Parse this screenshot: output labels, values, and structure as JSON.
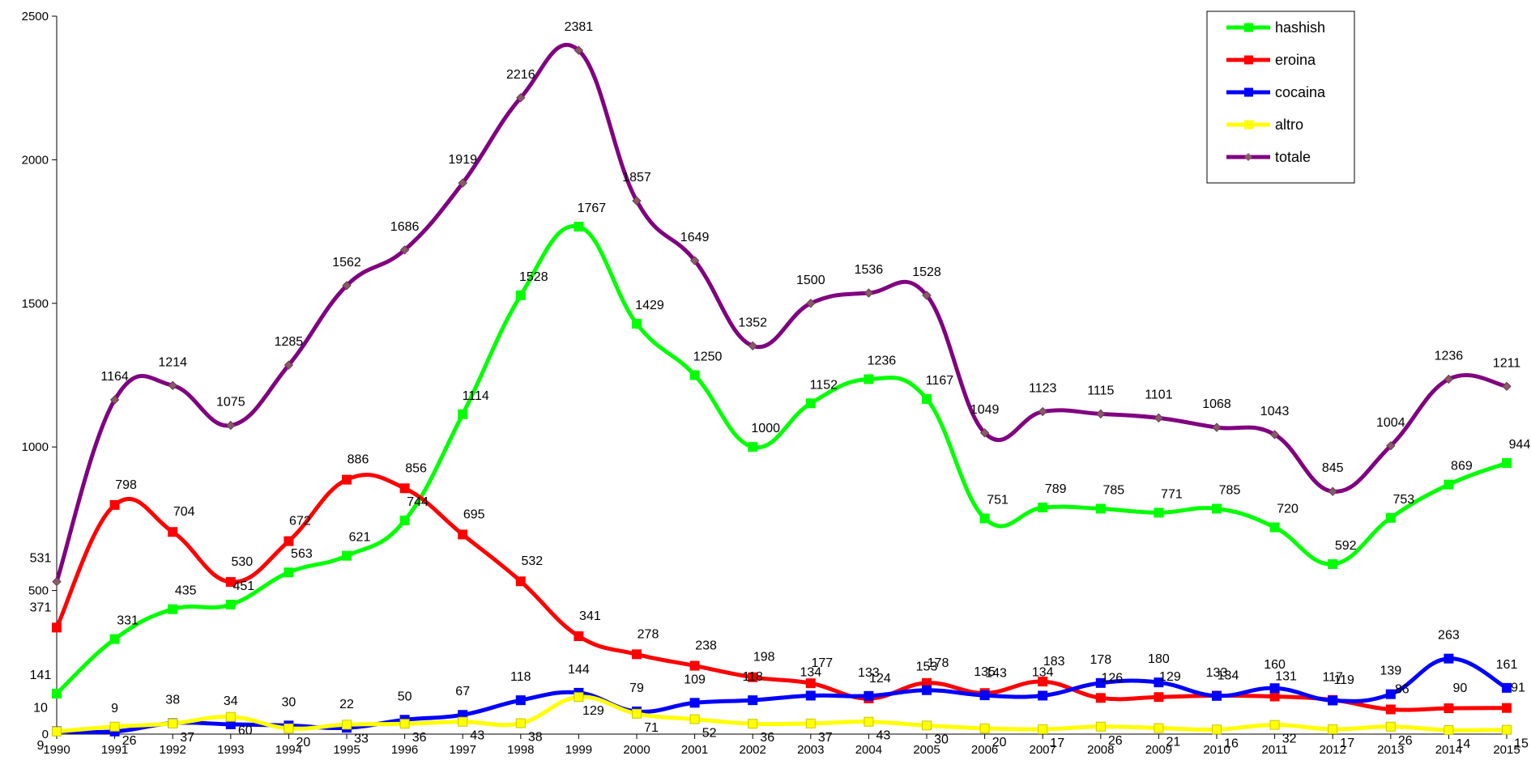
{
  "chart_data": {
    "type": "line",
    "title": "",
    "xlabel": "",
    "ylabel": "",
    "categories": [
      "1990",
      "1991",
      "1992",
      "1993",
      "1994",
      "1995",
      "1996",
      "1997",
      "1998",
      "1999",
      "2000",
      "2001",
      "2002",
      "2003",
      "2004",
      "2005",
      "2006",
      "2007",
      "2008",
      "2009",
      "2010",
      "2011",
      "2012",
      "2013",
      "2014",
      "2015"
    ],
    "ylim": [
      0,
      2500
    ],
    "yticks": [
      0,
      500,
      1000,
      1500,
      2000,
      2500
    ],
    "grid": false,
    "legend_position": "top-right",
    "series": [
      {
        "name": "hashish",
        "color": "#00ff00",
        "marker": "square",
        "values": [
          141,
          331,
          435,
          451,
          563,
          621,
          744,
          1114,
          1528,
          1767,
          1429,
          1250,
          1000,
          1152,
          1236,
          1167,
          751,
          789,
          785,
          771,
          785,
          720,
          592,
          753,
          869,
          944
        ]
      },
      {
        "name": "eroina",
        "color": "#ff0000",
        "marker": "square",
        "values": [
          371,
          798,
          704,
          530,
          672,
          886,
          856,
          695,
          532,
          341,
          278,
          238,
          198,
          177,
          124,
          178,
          143,
          183,
          126,
          129,
          134,
          131,
          119,
          86,
          90,
          91
        ]
      },
      {
        "name": "cocaina",
        "color": "#0000ff",
        "marker": "square",
        "values": [
          10,
          9,
          38,
          34,
          30,
          22,
          50,
          67,
          118,
          144,
          79,
          109,
          118,
          134,
          133,
          153,
          135,
          134,
          178,
          180,
          133,
          160,
          117,
          139,
          263,
          161
        ]
      },
      {
        "name": "altro",
        "color": "#ffff00",
        "marker": "square",
        "values": [
          9,
          26,
          37,
          60,
          20,
          33,
          36,
          43,
          38,
          129,
          71,
          52,
          36,
          37,
          43,
          30,
          20,
          17,
          26,
          21,
          16,
          32,
          17,
          26,
          14,
          15
        ]
      },
      {
        "name": "totale",
        "color": "#800080",
        "marker": "diamond",
        "values": [
          531,
          1164,
          1214,
          1075,
          1285,
          1562,
          1686,
          1919,
          2216,
          2381,
          1857,
          1649,
          1352,
          1500,
          1536,
          1528,
          1049,
          1123,
          1115,
          1101,
          1068,
          1043,
          845,
          1004,
          1236,
          1211
        ]
      }
    ]
  }
}
